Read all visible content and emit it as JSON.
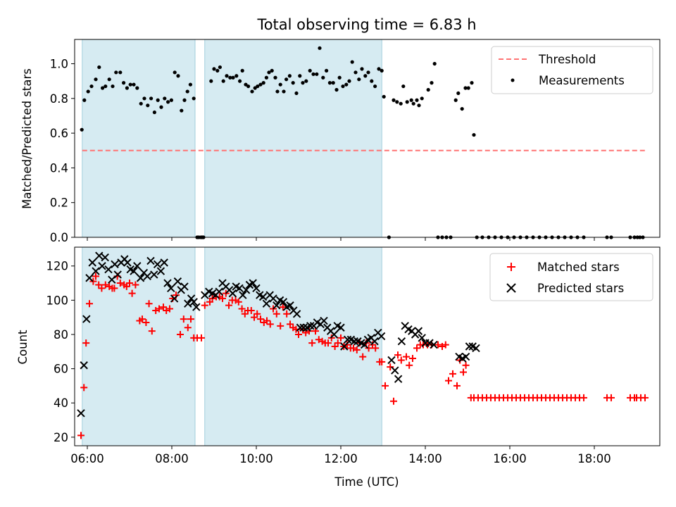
{
  "chart_data": [
    {
      "type": "scatter",
      "title": "Total observing time = 6.83 h",
      "xlabel": "",
      "ylabel": "Matched/Predicted stars",
      "xlim": [
        5.7,
        19.55
      ],
      "ylim": [
        0,
        1.14
      ],
      "x_ticks": [
        6,
        8,
        10,
        12,
        14,
        16,
        18
      ],
      "x_tick_labels": [],
      "y_ticks": [
        0,
        0.2,
        0.4,
        0.6,
        0.8,
        1.0
      ],
      "y_tick_labels": [
        "0.0",
        "0.2",
        "0.4",
        "0.6",
        "0.8",
        "1.0"
      ],
      "legend": {
        "placement": "top-right",
        "entries": [
          "Threshold",
          "Measurements"
        ]
      },
      "observing_windows": [
        [
          5.88,
          8.55
        ],
        [
          8.78,
          12.97
        ]
      ],
      "threshold": {
        "name": "Threshold",
        "value": 0.5,
        "x_range": [
          5.88,
          19.2
        ],
        "color": "#ff7373",
        "style": "dashed"
      },
      "series": [
        {
          "name": "Measurements",
          "color": "#000000",
          "marker": "dot",
          "x": [
            5.87,
            5.93,
            6.02,
            6.1,
            6.2,
            6.28,
            6.36,
            6.43,
            6.52,
            6.6,
            6.68,
            6.78,
            6.86,
            6.94,
            7.02,
            7.1,
            7.18,
            7.27,
            7.35,
            7.43,
            7.51,
            7.59,
            7.67,
            7.75,
            7.83,
            7.91,
            7.99,
            8.07,
            8.15,
            8.23,
            8.3,
            8.37,
            8.44,
            8.52,
            8.6,
            8.64,
            8.69,
            8.72,
            8.75,
            8.93,
            9.0,
            9.08,
            9.14,
            9.22,
            9.3,
            9.38,
            9.45,
            9.53,
            9.61,
            9.67,
            9.75,
            9.81,
            9.9,
            9.97,
            10.03,
            10.1,
            10.17,
            10.24,
            10.3,
            10.37,
            10.45,
            10.5,
            10.57,
            10.65,
            10.71,
            10.79,
            10.87,
            10.95,
            11.03,
            11.1,
            11.18,
            11.27,
            11.35,
            11.43,
            11.5,
            11.58,
            11.66,
            11.74,
            11.82,
            11.9,
            11.97,
            12.05,
            12.13,
            12.2,
            12.27,
            12.35,
            12.43,
            12.5,
            12.58,
            12.65,
            12.73,
            12.81,
            12.9,
            12.97,
            13.02,
            13.14,
            13.25,
            13.33,
            13.42,
            13.48,
            13.57,
            13.67,
            13.72,
            13.8,
            13.85,
            13.92,
            14.07,
            14.15,
            14.22,
            14.3,
            14.4,
            14.5,
            14.6,
            14.72,
            14.78,
            14.87,
            14.95,
            15.02,
            15.1,
            15.15,
            15.22,
            15.35,
            15.5,
            15.65,
            15.8,
            15.95,
            16.1,
            16.25,
            16.4,
            16.55,
            16.7,
            16.85,
            17.0,
            17.15,
            17.3,
            17.45,
            17.6,
            17.75,
            18.3,
            18.4,
            18.85,
            18.95,
            19.02,
            19.08,
            19.15
          ],
          "y": [
            0.62,
            0.79,
            0.84,
            0.87,
            0.91,
            0.98,
            0.86,
            0.87,
            0.91,
            0.87,
            0.95,
            0.95,
            0.89,
            0.86,
            0.88,
            0.88,
            0.86,
            0.77,
            0.8,
            0.76,
            0.8,
            0.72,
            0.79,
            0.75,
            0.8,
            0.78,
            0.79,
            0.95,
            0.93,
            0.73,
            0.79,
            0.84,
            0.88,
            0.8,
            0.0,
            0.0,
            0.0,
            0.0,
            0.0,
            0.9,
            0.97,
            0.96,
            0.98,
            0.9,
            0.93,
            0.92,
            0.92,
            0.93,
            0.9,
            0.96,
            0.88,
            0.87,
            0.84,
            0.86,
            0.87,
            0.88,
            0.89,
            0.92,
            0.95,
            0.96,
            0.92,
            0.84,
            0.88,
            0.84,
            0.91,
            0.93,
            0.89,
            0.83,
            0.93,
            0.89,
            0.9,
            0.96,
            0.94,
            0.94,
            1.09,
            0.92,
            0.96,
            0.89,
            0.89,
            0.85,
            0.92,
            0.87,
            0.88,
            0.9,
            1.01,
            0.95,
            0.91,
            0.97,
            0.93,
            0.95,
            0.9,
            0.87,
            0.97,
            0.96,
            0.81,
            0.0,
            0.79,
            0.78,
            0.77,
            0.87,
            0.78,
            0.79,
            0.77,
            0.79,
            0.76,
            0.8,
            0.85,
            0.89,
            1.0,
            0.0,
            0.0,
            0.0,
            0.0,
            0.79,
            0.83,
            0.74,
            0.86,
            0.86,
            0.89,
            0.59,
            0.0,
            0.0,
            0.0,
            0.0,
            0.0,
            0.0,
            0.0,
            0.0,
            0.0,
            0.0,
            0.0,
            0.0,
            0.0,
            0.0,
            0.0,
            0.0,
            0.0,
            0.0,
            0.0,
            0.0,
            0.0,
            0.0,
            0.0,
            0.0,
            0.0
          ]
        }
      ]
    },
    {
      "type": "scatter",
      "title": "",
      "xlabel": "Time (UTC)",
      "ylabel": "Count",
      "xlim": [
        5.7,
        19.55
      ],
      "ylim": [
        15,
        131
      ],
      "x_ticks": [
        6,
        8,
        10,
        12,
        14,
        16,
        18
      ],
      "x_tick_labels": [
        "06:00",
        "08:00",
        "10:00",
        "12:00",
        "14:00",
        "16:00",
        "18:00"
      ],
      "y_ticks": [
        20,
        40,
        60,
        80,
        100,
        120
      ],
      "y_tick_labels": [
        "20",
        "40",
        "60",
        "80",
        "100",
        "120"
      ],
      "legend": {
        "placement": "top-right",
        "entries": [
          "Matched stars",
          "Predicted stars"
        ]
      },
      "observing_windows": [
        [
          5.88,
          8.55
        ],
        [
          8.78,
          12.97
        ]
      ],
      "series": [
        {
          "name": "Matched stars",
          "color": "#ff0000",
          "marker": "plus",
          "x": [
            5.85,
            5.92,
            5.97,
            6.05,
            6.14,
            6.2,
            6.27,
            6.34,
            6.43,
            6.52,
            6.59,
            6.64,
            6.71,
            6.78,
            6.87,
            6.93,
            7.0,
            7.06,
            7.14,
            7.24,
            7.3,
            7.39,
            7.46,
            7.53,
            7.62,
            7.7,
            7.8,
            7.87,
            7.95,
            8.02,
            8.1,
            8.2,
            8.28,
            8.38,
            8.45,
            8.52,
            8.6,
            8.7,
            8.78,
            8.9,
            8.96,
            9.05,
            9.13,
            9.2,
            9.28,
            9.35,
            9.43,
            9.51,
            9.58,
            9.66,
            9.73,
            9.8,
            9.88,
            9.95,
            10.02,
            10.1,
            10.18,
            10.25,
            10.33,
            10.4,
            10.48,
            10.57,
            10.63,
            10.72,
            10.8,
            10.87,
            10.94,
            11.0,
            11.1,
            11.17,
            11.25,
            11.32,
            11.4,
            11.48,
            11.56,
            11.63,
            11.7,
            11.78,
            11.86,
            11.93,
            12.0,
            12.07,
            12.15,
            12.23,
            12.3,
            12.38,
            12.45,
            12.52,
            12.6,
            12.66,
            12.75,
            12.82,
            12.92,
            12.97,
            13.05,
            13.17,
            13.25,
            13.35,
            13.43,
            13.55,
            13.62,
            13.7,
            13.8,
            13.88,
            13.95,
            14.05,
            14.15,
            14.3,
            14.4,
            14.48,
            14.55,
            14.65,
            14.75,
            14.82,
            14.9,
            14.96,
            15.08,
            15.15,
            15.25,
            15.35,
            15.45,
            15.55,
            15.65,
            15.75,
            15.85,
            15.95,
            16.05,
            16.15,
            16.25,
            16.35,
            16.45,
            16.55,
            16.65,
            16.75,
            16.85,
            16.95,
            17.05,
            17.15,
            17.25,
            17.35,
            17.45,
            17.55,
            17.65,
            17.75,
            18.3,
            18.4,
            18.85,
            18.95,
            19.0,
            19.1,
            19.2
          ],
          "y": [
            21,
            49,
            75,
            98,
            111,
            114,
            109,
            107,
            109,
            108,
            107,
            107,
            114,
            110,
            109,
            108,
            110,
            104,
            109,
            88,
            89,
            87,
            98,
            82,
            94,
            95,
            96,
            94,
            95,
            101,
            103,
            80,
            89,
            84,
            89,
            78,
            78,
            78,
            97,
            99,
            101,
            102,
            102,
            101,
            104,
            97,
            100,
            100,
            99,
            95,
            92,
            94,
            94,
            90,
            92,
            89,
            87,
            88,
            86,
            95,
            92,
            85,
            96,
            92,
            86,
            84,
            83,
            80,
            83,
            81,
            82,
            75,
            82,
            77,
            76,
            75,
            75,
            78,
            73,
            75,
            78,
            73,
            74,
            72,
            72,
            71,
            75,
            67,
            75,
            72,
            74,
            72,
            64,
            64,
            50,
            61,
            41,
            68,
            65,
            67,
            62,
            66,
            72,
            74,
            74,
            74,
            74,
            74,
            73,
            74,
            53,
            57,
            50,
            65,
            58,
            62,
            43,
            43,
            43,
            43,
            43,
            43,
            43,
            43,
            43,
            43,
            43,
            43,
            43,
            43,
            43,
            43,
            43,
            43,
            43,
            43,
            43,
            43,
            43,
            43,
            43,
            43,
            43,
            43,
            43,
            43,
            43,
            43,
            43,
            43,
            43
          ]
        },
        {
          "name": "Predicted stars",
          "color": "#000000",
          "marker": "x",
          "x": [
            5.85,
            5.92,
            5.98,
            6.05,
            6.12,
            6.2,
            6.28,
            6.35,
            6.42,
            6.5,
            6.58,
            6.65,
            6.72,
            6.8,
            6.88,
            6.95,
            7.02,
            7.1,
            7.18,
            7.26,
            7.34,
            7.42,
            7.5,
            7.58,
            7.66,
            7.74,
            7.82,
            7.9,
            7.98,
            8.06,
            8.14,
            8.22,
            8.3,
            8.38,
            8.46,
            8.52,
            8.58,
            8.78,
            8.88,
            8.96,
            9.04,
            9.12,
            9.2,
            9.28,
            9.36,
            9.44,
            9.52,
            9.6,
            9.68,
            9.76,
            9.84,
            9.92,
            10.0,
            10.08,
            10.16,
            10.24,
            10.32,
            10.4,
            10.48,
            10.56,
            10.64,
            10.72,
            10.8,
            10.88,
            10.96,
            11.04,
            11.12,
            11.2,
            11.28,
            11.36,
            11.44,
            11.52,
            11.6,
            11.68,
            11.76,
            11.84,
            11.92,
            12.0,
            12.08,
            12.16,
            12.24,
            12.32,
            12.4,
            12.48,
            12.56,
            12.64,
            12.72,
            12.8,
            12.88,
            12.96,
            13.2,
            13.28,
            13.36,
            13.44,
            13.52,
            13.6,
            13.68,
            13.76,
            13.84,
            13.92,
            14.0,
            14.1,
            14.2,
            14.8,
            14.88,
            14.96,
            15.04,
            15.12,
            15.2
          ],
          "y": [
            34,
            62,
            89,
            113,
            122,
            117,
            126,
            120,
            125,
            118,
            112,
            121,
            115,
            122,
            124,
            122,
            118,
            117,
            120,
            113,
            116,
            114,
            123,
            115,
            121,
            117,
            122,
            110,
            107,
            101,
            111,
            106,
            108,
            98,
            101,
            99,
            96,
            103,
            105,
            104,
            103,
            105,
            110,
            108,
            106,
            104,
            108,
            107,
            103,
            106,
            109,
            110,
            107,
            103,
            102,
            98,
            103,
            101,
            97,
            100,
            99,
            96,
            97,
            94,
            92,
            84,
            84,
            84,
            85,
            85,
            87,
            86,
            88,
            84,
            82,
            80,
            85,
            84,
            73,
            77,
            77,
            76,
            76,
            75,
            74,
            77,
            78,
            76,
            81,
            79,
            65,
            59,
            54,
            76,
            85,
            83,
            82,
            80,
            82,
            78,
            75,
            75,
            74,
            67,
            66,
            67,
            73,
            73,
            72
          ]
        }
      ]
    }
  ]
}
